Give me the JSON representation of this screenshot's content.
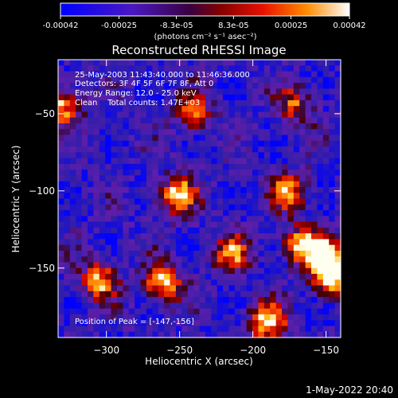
{
  "colorbar": {
    "ticks": [
      "-0.00042",
      "-0.00025",
      "-8.3e-05",
      "8.3e-05",
      "0.00025",
      "0.00042"
    ],
    "values": [
      -0.00042,
      -0.00025,
      -8.3e-05,
      8.3e-05,
      0.00025,
      0.00042
    ],
    "range": [
      -0.00042,
      0.00042
    ],
    "unit_label": "(photons cm⁻² s⁻¹ asec⁻²)",
    "colormap": "RHESSI blue-purple-red-yellow-white"
  },
  "annotations": {
    "time": "25-May-2003 11:43:40.000 to 11:46:36.000",
    "detectors": "Detectors: 3F 4F 5F 6F 7F 8F, Att 0",
    "energy": "Energy Range: 12.0 - 25.0 keV",
    "method": "Clean    Total counts: 1.47E+03",
    "peak": "Position of Peak = [-147,-156]"
  },
  "footer": {
    "date": "1-May-2022 20:40"
  },
  "colors": {
    "background": "#000000",
    "text": "#ffffff",
    "purple": "#5a1ea8",
    "blue": "#3030d0",
    "red": "#e01010",
    "orange": "#ff7a00",
    "yellow": "#ffee20"
  },
  "chart_data": {
    "type": "heatmap",
    "title": "Reconstructed RHESSI Image",
    "xlabel": "Heliocentric X (arcsec)",
    "ylabel": "Heliocentric Y (arcsec)",
    "xlim": [
      -333,
      -140
    ],
    "ylim": [
      -195,
      -15
    ],
    "x_ticks": [
      -300,
      -250,
      -200,
      -150
    ],
    "y_ticks": [
      -50,
      -100,
      -150
    ],
    "x_tick_labels": [
      "−300",
      "−250",
      "−200",
      "−150"
    ],
    "y_tick_labels": [
      "−50",
      "−100",
      "−150"
    ],
    "peak": [
      -147,
      -156
    ],
    "bright_sources": [
      {
        "x": -330,
        "y": -45,
        "value": 0.00036
      },
      {
        "x": -252,
        "y": -103,
        "value": 0.0004
      },
      {
        "x": -262,
        "y": -160,
        "value": 0.00038
      },
      {
        "x": -305,
        "y": -158,
        "value": 0.00032
      },
      {
        "x": -168,
        "y": -135,
        "value": 0.00032
      },
      {
        "x": -175,
        "y": -100,
        "value": 0.00027
      },
      {
        "x": -147,
        "y": -156,
        "value": 0.0004
      },
      {
        "x": -190,
        "y": -185,
        "value": 0.0004
      },
      {
        "x": -150,
        "y": -140,
        "value": 0.0003
      },
      {
        "x": -215,
        "y": -140,
        "value": 0.00024
      },
      {
        "x": -240,
        "y": -50,
        "value": 0.00018
      },
      {
        "x": -170,
        "y": -45,
        "value": 0.00018
      }
    ],
    "background_level": -0.00025
  }
}
